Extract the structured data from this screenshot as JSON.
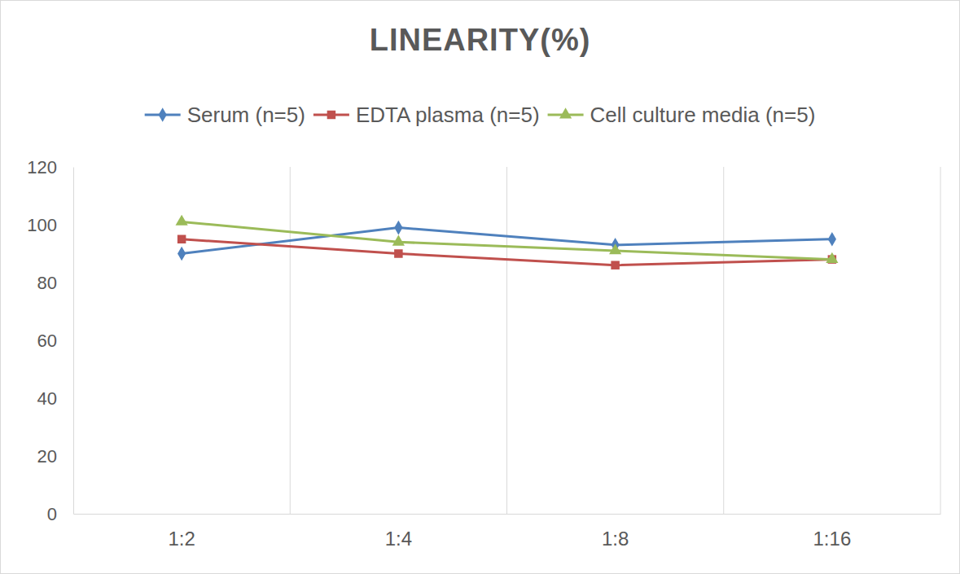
{
  "chart_data": {
    "type": "line",
    "title": "LINEARITY(%)",
    "categories": [
      "1:2",
      "1:4",
      "1:8",
      "1:16"
    ],
    "series": [
      {
        "name": "Serum (n=5)",
        "color": "#4f81bd",
        "marker": "diamond",
        "values": [
          90,
          99,
          93,
          95
        ]
      },
      {
        "name": "EDTA plasma (n=5)",
        "color": "#c0504d",
        "marker": "square",
        "values": [
          95,
          90,
          86,
          88
        ]
      },
      {
        "name": "Cell culture media (n=5)",
        "color": "#9bbb59",
        "marker": "triangle",
        "values": [
          101,
          94,
          91,
          88
        ]
      }
    ],
    "ylim": [
      0,
      120
    ],
    "yticks": [
      0,
      20,
      40,
      60,
      80,
      100,
      120
    ],
    "grid": true,
    "legend": "top"
  }
}
